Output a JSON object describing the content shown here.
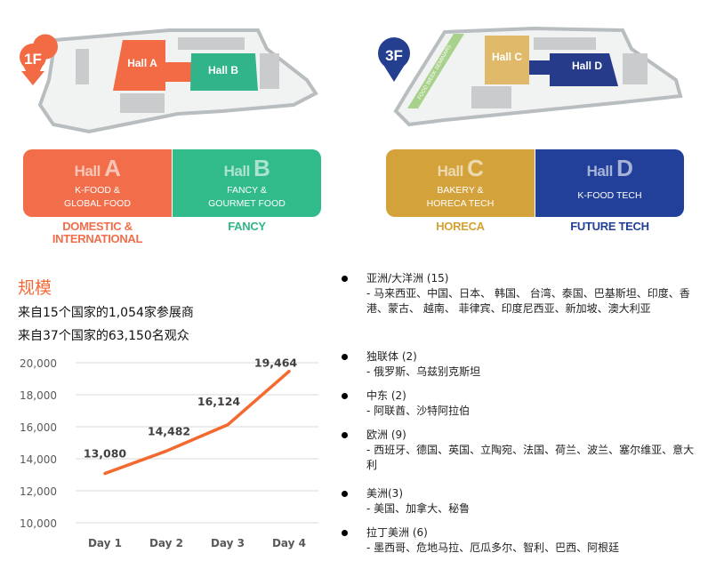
{
  "floors": [
    {
      "label": "1F",
      "color": "#f26b45"
    },
    {
      "label": "3F",
      "color": "#243f8f"
    }
  ],
  "map_labels": {
    "hall_a": "Hall A",
    "hall_b": "Hall B",
    "hall_c": "Hall C",
    "hall_d": "Hall D",
    "seminar": "FOOD WEEK SEMINARS"
  },
  "halls": [
    {
      "hall": "Hall",
      "letter": "A",
      "desc1": "K-FOOD &",
      "desc2": "GLOBAL FOOD",
      "category1": "DOMESTIC &",
      "category2": "INTERNATIONAL",
      "color": "#f26e4a",
      "text_color": "#f26e4a"
    },
    {
      "hall": "Hall",
      "letter": "B",
      "desc1": "FANCY &",
      "desc2": "GOURMET FOOD",
      "category1": "FANCY",
      "category2": "",
      "color": "#31bb8b",
      "text_color": "#2fb784"
    },
    {
      "hall": "Hall",
      "letter": "C",
      "desc1": "BAKERY &",
      "desc2": "HORECA TECH",
      "category1": "HORECA",
      "category2": "",
      "color": "#d4a23a",
      "text_color": "#d6a131"
    },
    {
      "hall": "Hall",
      "letter": "D",
      "desc1": "K-FOOD TECH",
      "desc2": "",
      "category1": "FUTURE TECH",
      "category2": "",
      "color": "#22409a",
      "text_color": "#22409a"
    }
  ],
  "scale": {
    "title": "规模",
    "exhibitors": "来自15个国家的1,054家参展商",
    "visitors": "来自37个国家的63,150名观众"
  },
  "chart_data": {
    "type": "line",
    "categories": [
      "Day 1",
      "Day 2",
      "Day 3",
      "Day 4"
    ],
    "values": [
      13080,
      14482,
      16124,
      19464
    ],
    "data_labels": [
      "13,080",
      "14,482",
      "16,124",
      "19,464"
    ],
    "yticks": [
      "10,000",
      "12,000",
      "14,000",
      "16,000",
      "18,000",
      "20,000"
    ],
    "ylim": [
      10000,
      20000
    ],
    "grid": true,
    "line_color": "#f5692e"
  },
  "regions": [
    {
      "name": "亚洲/大洋洲 (15)",
      "countries": "- 马来西亚、中国、日本、 韩国、 台湾、泰国、巴基斯坦、印度、香港、蒙古、 越南、 菲律宾、印度尼西亚、新加坡、澳大利亚"
    },
    {
      "name": "独联体 (2)",
      "countries": "- 俄罗斯、乌兹别克斯坦"
    },
    {
      "name": "中东 (2)",
      "countries": "- 阿联酋、沙特阿拉伯"
    },
    {
      "name": "欧洲 (9)",
      "countries": "- 西班牙、德国、英国、立陶宛、法国、荷兰、波兰、塞尔维亚、意大利"
    },
    {
      "name": "美洲(3)",
      "countries": "- 美国、加拿大、秘鲁"
    },
    {
      "name": "拉丁美洲 (6)",
      "countries": "- 墨西哥、危地马拉、厄瓜多尔、智利、巴西、阿根廷"
    }
  ]
}
